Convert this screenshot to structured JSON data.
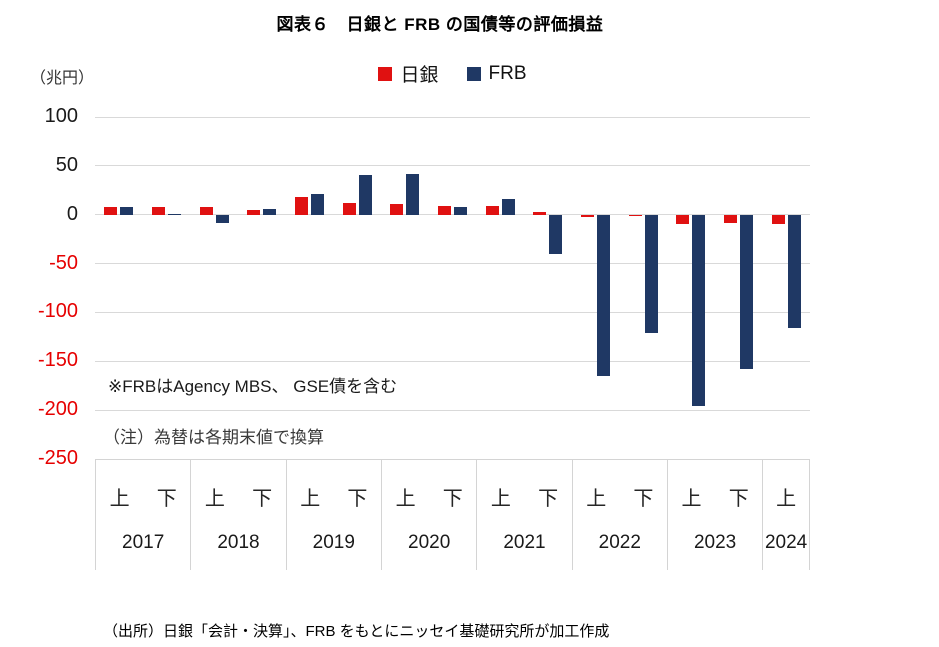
{
  "title": "図表６　日銀と FRB の国債等の評価損益",
  "unit_label": "（兆円）",
  "legend": {
    "boj": "日銀",
    "frb": "FRB"
  },
  "annotations": {
    "frb_note": "※FRBはAgency MBS、 GSE債を含む",
    "fx_note": "（注）為替は各期末値で換算"
  },
  "source": "（出所）日銀「会計・決算」、FRB をもとにニッセイ基礎研究所が加工作成",
  "colors": {
    "boj": "#e01111",
    "frb": "#1f3864",
    "negative_tick": "#e60000",
    "grid": "#d9d9d9"
  },
  "chart_data": {
    "type": "bar",
    "title": "図表６　日銀と FRB の国債等の評価損益",
    "ylabel": "（兆円）",
    "ylim": [
      -250,
      100
    ],
    "yticks": [
      100,
      50,
      0,
      -50,
      -100,
      -150,
      -200,
      -250
    ],
    "grid": true,
    "legend_position": "top",
    "categories": [
      "2017上",
      "2017下",
      "2018上",
      "2018下",
      "2019上",
      "2019下",
      "2020上",
      "2020下",
      "2021上",
      "2021下",
      "2022上",
      "2022下",
      "2023上",
      "2023下",
      "2024上"
    ],
    "year_groups": [
      {
        "year": "2017",
        "halves": [
          "上",
          "下"
        ]
      },
      {
        "year": "2018",
        "halves": [
          "上",
          "下"
        ]
      },
      {
        "year": "2019",
        "halves": [
          "上",
          "下"
        ]
      },
      {
        "year": "2020",
        "halves": [
          "上",
          "下"
        ]
      },
      {
        "year": "2021",
        "halves": [
          "上",
          "下"
        ]
      },
      {
        "year": "2022",
        "halves": [
          "上",
          "下"
        ]
      },
      {
        "year": "2023",
        "halves": [
          "上",
          "下"
        ]
      },
      {
        "year": "2024",
        "halves": [
          "上"
        ]
      }
    ],
    "series": [
      {
        "name": "日銀",
        "color_key": "boj",
        "values": [
          8,
          8,
          8,
          5,
          18,
          12,
          11,
          9,
          9,
          3,
          -2,
          0,
          -10,
          -9,
          -10
        ]
      },
      {
        "name": "FRB",
        "color_key": "frb",
        "values": [
          8,
          1,
          -8,
          6,
          21,
          41,
          42,
          8,
          16,
          -40,
          -165,
          -121,
          -196,
          -158,
          -116
        ]
      }
    ]
  }
}
